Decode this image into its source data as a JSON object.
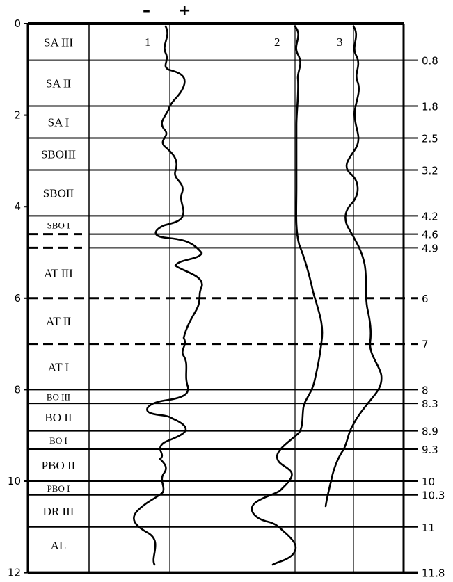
{
  "depth_axis": {
    "min": 0,
    "max": 12,
    "ticks": [
      "0",
      "2",
      "4",
      "6",
      "8",
      "10",
      "12"
    ]
  },
  "signs": {
    "minus": "–",
    "plus": "+"
  },
  "curve_labels": [
    "1",
    "2",
    "3"
  ],
  "zones": [
    {
      "id": "sa3",
      "label": "SA III",
      "top": 0,
      "bottom": 0.8,
      "small": false
    },
    {
      "id": "sa2",
      "label": "SA II",
      "top": 0.8,
      "bottom": 1.8,
      "small": false
    },
    {
      "id": "sa1",
      "label": "SA I",
      "top": 1.8,
      "bottom": 2.5,
      "small": false
    },
    {
      "id": "sbo3",
      "label": "SBOIII",
      "top": 2.5,
      "bottom": 3.2,
      "small": false
    },
    {
      "id": "sbo2",
      "label": "SBOII",
      "top": 3.2,
      "bottom": 4.2,
      "small": false
    },
    {
      "id": "sbo1",
      "label": "SBO I",
      "top": 4.2,
      "bottom": 4.6,
      "small": true
    },
    {
      "id": "at3",
      "label": "AT III",
      "top": 4.9,
      "bottom": 6,
      "small": false
    },
    {
      "id": "at2",
      "label": "AT II",
      "top": 6,
      "bottom": 7,
      "small": false
    },
    {
      "id": "at1",
      "label": "AT I",
      "top": 7,
      "bottom": 8,
      "small": false
    },
    {
      "id": "bo3",
      "label": "BO III",
      "top": 8,
      "bottom": 8.3,
      "small": true
    },
    {
      "id": "bo2",
      "label": "BO II",
      "top": 8.3,
      "bottom": 8.9,
      "small": false
    },
    {
      "id": "bo1",
      "label": "BO I",
      "top": 8.9,
      "bottom": 9.3,
      "small": true
    },
    {
      "id": "pbo2",
      "label": "PBO II",
      "top": 9.3,
      "bottom": 10,
      "small": false
    },
    {
      "id": "pbo1",
      "label": "PBO I",
      "top": 10,
      "bottom": 10.3,
      "small": true
    },
    {
      "id": "dr3",
      "label": "DR III",
      "top": 10.3,
      "bottom": 11,
      "small": false
    },
    {
      "id": "al",
      "label": "AL",
      "top": 11,
      "bottom": 11.8,
      "small": false
    }
  ],
  "boundaries": [
    {
      "depth": 0.8,
      "label": "0.8",
      "style": "solid"
    },
    {
      "depth": 1.8,
      "label": "1.8",
      "style": "solid"
    },
    {
      "depth": 2.5,
      "label": "2.5",
      "style": "solid"
    },
    {
      "depth": 3.2,
      "label": "3.2",
      "style": "solid"
    },
    {
      "depth": 4.2,
      "label": "4.2",
      "style": "solid"
    },
    {
      "depth": 4.6,
      "label": "4.6",
      "style": "partial-dash"
    },
    {
      "depth": 4.9,
      "label": "4.9",
      "style": "partial-dash"
    },
    {
      "depth": 6,
      "label": "6",
      "style": "dashed"
    },
    {
      "depth": 7,
      "label": "7",
      "style": "dashed"
    },
    {
      "depth": 8,
      "label": "8",
      "style": "solid"
    },
    {
      "depth": 8.3,
      "label": "8.3",
      "style": "solid"
    },
    {
      "depth": 8.9,
      "label": "8.9",
      "style": "solid"
    },
    {
      "depth": 9.3,
      "label": "9.3",
      "style": "solid"
    },
    {
      "depth": 10,
      "label": "10",
      "style": "solid"
    },
    {
      "depth": 10.3,
      "label": "10.3",
      "style": "solid"
    },
    {
      "depth": 11,
      "label": "11",
      "style": "solid"
    },
    {
      "depth": 11.8,
      "label": "11.8",
      "style": "bottom"
    }
  ]
}
